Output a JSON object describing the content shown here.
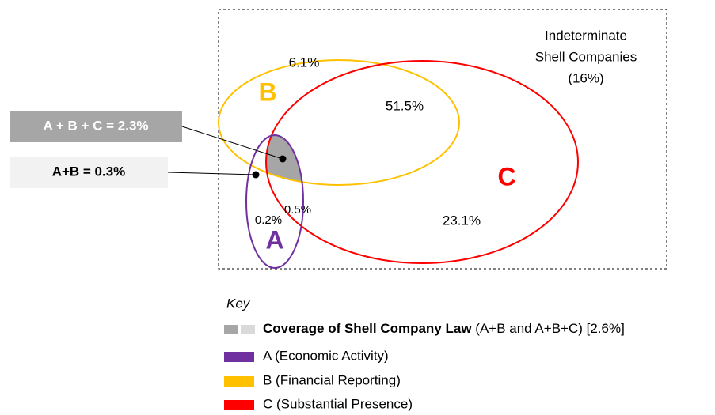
{
  "diagram": {
    "region_labels": {
      "B": "B",
      "C": "C",
      "A": "A"
    },
    "values": {
      "b_only": "6.1%",
      "b_and_c": "51.5%",
      "c_only": "23.1%",
      "a_only": "0.2%",
      "a_and_c": "0.5%"
    },
    "indeterminate": [
      "Indeterminate",
      "Shell Companies",
      "(16%)"
    ],
    "callouts": [
      "A + B + C = 2.3%",
      "A+B = 0.3%"
    ]
  },
  "key": {
    "title": "Key",
    "items": [
      {
        "bold": "Coverage of Shell Company Law",
        "text": " (A+B and A+B+C) [2.6%]"
      },
      {
        "text": "A (Economic Activity)"
      },
      {
        "text": "B (Financial Reporting)"
      },
      {
        "text": "C (Substantial Presence)"
      }
    ]
  }
}
